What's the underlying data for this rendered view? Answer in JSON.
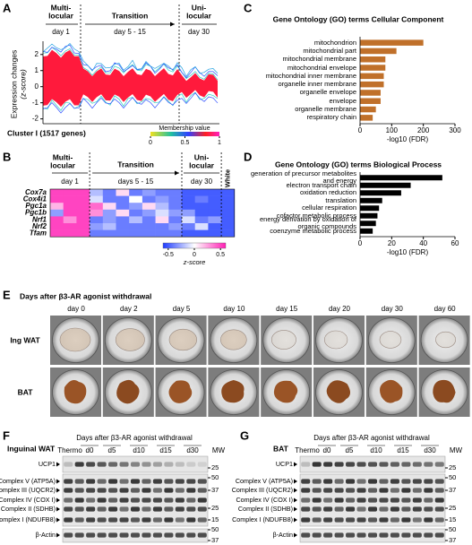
{
  "panel_labels": [
    "A",
    "B",
    "C",
    "D",
    "E",
    "F",
    "G"
  ],
  "chart_data": [
    {
      "type": "line",
      "phases": [
        {
          "name": [
            "Multi-",
            "locular"
          ],
          "range": "day 1"
        },
        {
          "name": [
            "Transition"
          ],
          "range": "day 5 - 15"
        },
        {
          "name": [
            "Uni-",
            "locular"
          ],
          "range": "day 30"
        }
      ],
      "ylabel": [
        "Expression changes",
        "(z-score)"
      ],
      "ylim": [
        -2.3,
        2.6
      ],
      "yticks": [
        2,
        1,
        0,
        -1,
        -2
      ],
      "xlabel": "Cluster I (1517 genes)",
      "colorbar_title": "Membership value",
      "clim": [
        0,
        1
      ],
      "cticks": [
        0,
        0.5,
        1
      ]
    },
    {
      "type": "heatmap",
      "phases": [
        {
          "name": [
            "Multi-",
            "locular"
          ],
          "range": "day 1"
        },
        {
          "name": [
            "Transition"
          ],
          "range": "days 5 - 15"
        },
        {
          "name": [
            "Uni-",
            "locular"
          ],
          "range": "day 30"
        },
        {
          "name": [
            "White"
          ]
        }
      ],
      "rows": [
        "Cox7a",
        "Cox4i1",
        "Pgc1a",
        "Pgc1b",
        "Nrf1",
        "Nrf2",
        "Tfam"
      ],
      "values": [
        [
          0.5,
          0.5,
          0.5,
          -0.2,
          -0.4,
          0.1,
          -0.4,
          -0.3,
          -0.4,
          -0.4,
          -0.5,
          -0.5,
          -0.5,
          -0.5
        ],
        [
          0.5,
          0.5,
          0.5,
          -0.1,
          -0.4,
          -0.4,
          0,
          -0.4,
          -0.3,
          -0.4,
          -0.5,
          -0.4,
          -0.5,
          -0.5
        ],
        [
          0.2,
          0.5,
          0.5,
          0.4,
          0.1,
          -0.4,
          -0.3,
          0.1,
          -0.2,
          -0.4,
          -0.5,
          -0.5,
          -0.5,
          -0.5
        ],
        [
          -0.3,
          0.5,
          0.5,
          0.3,
          -0.3,
          0.1,
          -0.4,
          -0.3,
          -0.1,
          -0.3,
          -0.3,
          -0.5,
          -0.5,
          -0.5
        ],
        [
          0.5,
          0.3,
          0.5,
          -0.4,
          -0.3,
          -0.4,
          -0.2,
          -0.4,
          0.1,
          -0.4,
          -0.1,
          -0.4,
          -0.3,
          -0.5
        ],
        [
          0.5,
          0.5,
          0.5,
          -0.3,
          -0.2,
          -0.4,
          -0.4,
          -0.4,
          -0.4,
          -0.3,
          -0.4,
          -0.1,
          -0.5,
          -0.5
        ],
        [
          0.5,
          0.5,
          0.5,
          -0.4,
          -0.4,
          -0.4,
          -0.4,
          -0.4,
          -0.4,
          -0.4,
          -0.5,
          -0.5,
          -0.5,
          -0.5
        ]
      ],
      "colorbar_title": "z-score",
      "zlim": [
        -0.6,
        0.6
      ],
      "zticks": [
        -0.5,
        0,
        0.5
      ]
    },
    {
      "type": "barh",
      "title": "Gene Ontology (GO) terms Cellular Component",
      "categories": [
        "mitochondrion",
        "mitochondrial part",
        "mitochondrial membrane",
        "mitochondrial envelope",
        "mitochondrial inner membrane",
        "organelle inner membrane",
        "organelle envelope",
        "envelope",
        "organelle membrane",
        "respiratory chain"
      ],
      "values": [
        200,
        115,
        80,
        80,
        75,
        75,
        65,
        65,
        50,
        40
      ],
      "color": "#c0702a",
      "xlim": [
        0,
        300
      ],
      "xticks": [
        0,
        100,
        200,
        300
      ],
      "xlabel": "-log10 (FDR)"
    },
    {
      "type": "barh",
      "title": "Gene Ontology (GO) terms Biological Process",
      "categories": [
        "generation of precursor metabolites and energy",
        "electron transport chain",
        "oxidation reduction",
        "translation",
        "cellular respiration",
        "cofactor metabolic process",
        "energy derivation by oxidation of organic compounds",
        "coenzyme metabolic process"
      ],
      "values": [
        52,
        32,
        26,
        14,
        12,
        11,
        10,
        8
      ],
      "color": "#000000",
      "xlim": [
        0,
        60
      ],
      "xticks": [
        0,
        20,
        40,
        60
      ],
      "xlabel": "-log10 (FDR)"
    }
  ],
  "photos": {
    "title": "Days after β3-AR agonist withdrawal",
    "rows": [
      "Ing WAT",
      "BAT"
    ],
    "days": [
      "day 0",
      "day 2",
      "day 5",
      "day 10",
      "day 15",
      "day 20",
      "day 30",
      "day 60"
    ]
  },
  "blots": [
    {
      "title": "Inguinal WAT",
      "subtitle": "Days after β3-AR agonist withdrawal",
      "lanes": [
        "Thermo",
        "d0",
        "d5",
        "d10",
        "d15",
        "d30"
      ],
      "mw_label": "MW",
      "bands": [
        "UCP1",
        "Complex V (ATP5A)",
        "Complex III (UQCR2)",
        "Complex IV (COX I)",
        "Complex II (SDHB)",
        "Complex I (NDUFB8)",
        "β-Actin"
      ],
      "mw": [
        25,
        50,
        37,
        25,
        15,
        50,
        37
      ]
    },
    {
      "title": "BAT",
      "subtitle": "Days after β3-AR agonist withdrawal",
      "lanes": [
        "Thermo",
        "d0",
        "d5",
        "d10",
        "d15",
        "d30"
      ],
      "mw_label": "MW",
      "bands": [
        "UCP1",
        "Complex V (ATP5A)",
        "Complex III (UQCR2)",
        "Complex IV (COX I)",
        "Complex II (SDHB)",
        "Complex I (NDUFB8)",
        "β-Actin"
      ],
      "mw": [
        25,
        50,
        37,
        25,
        15,
        50,
        37
      ]
    }
  ]
}
